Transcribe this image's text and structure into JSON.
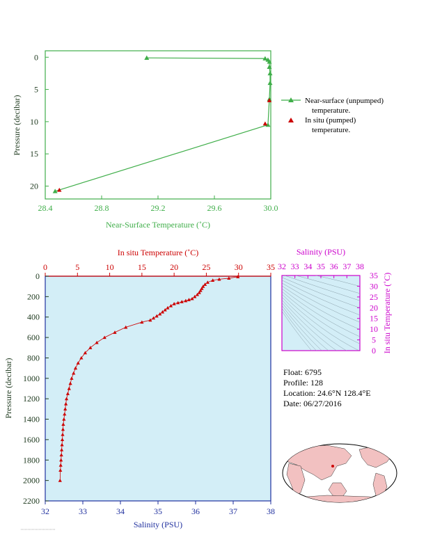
{
  "chart_data": [
    {
      "type": "line",
      "xlabel": "Near-Surface Temperature (˚C)",
      "ylabel": "Pressure (decibar)",
      "xlim": [
        28.4,
        30.0
      ],
      "ylim": [
        22,
        -1
      ],
      "xticks": [
        "28.4",
        "28.8",
        "29.2",
        "29.6",
        "30.0"
      ],
      "yticks": [
        "0",
        "5",
        "10",
        "15",
        "20"
      ],
      "series": [
        {
          "name": "Near-surface (unpumped) temperature.",
          "color": "#3fae49",
          "marker": "triangle",
          "x": [
            29.12,
            29.96,
            29.98,
            29.99,
            29.99,
            29.995,
            29.995,
            29.99,
            29.98,
            28.47
          ],
          "y": [
            0.1,
            0.2,
            0.4,
            0.7,
            1.5,
            2.5,
            4.0,
            6.5,
            10.5,
            20.8
          ]
        },
        {
          "name": "In situ (pumped) temperature.",
          "color": "#cc0000",
          "marker": "triangle",
          "x": [
            29.99,
            29.96,
            28.5
          ],
          "y": [
            6.7,
            10.3,
            20.6
          ]
        }
      ],
      "legend": "right"
    },
    {
      "type": "line",
      "top_axis_label": "In situ Temperature (˚C)",
      "xlabel": "Salinity (PSU)",
      "ylabel": "Pressure (decibar)",
      "temp_lim": [
        0,
        35
      ],
      "sal_lim": [
        32,
        38
      ],
      "ylim": [
        2200,
        0
      ],
      "temp_ticks": [
        "0",
        "5",
        "10",
        "15",
        "20",
        "25",
        "30",
        "35"
      ],
      "sal_ticks": [
        "32",
        "33",
        "34",
        "35",
        "36",
        "37",
        "38"
      ],
      "yticks": [
        "0",
        "200",
        "400",
        "600",
        "800",
        "1000",
        "1200",
        "1400",
        "1600",
        "1800",
        "2000",
        "2200"
      ],
      "series": [
        {
          "name": "In situ temperature profile",
          "color": "#cc0000",
          "marker": "triangle",
          "temp": [
            29.9,
            28.5,
            27.0,
            26.0,
            25.2,
            24.8,
            24.5,
            24.3,
            24.1,
            23.9,
            23.6,
            23.2,
            22.8,
            22.3,
            21.8,
            21.2,
            20.6,
            20.0,
            19.5,
            19.0,
            18.6,
            18.2,
            17.8,
            17.3,
            16.8,
            16.3,
            15.0,
            12.5,
            10.8,
            9.2,
            8.0,
            7.0,
            6.2,
            5.6,
            5.1,
            4.7,
            4.4,
            4.1,
            3.9,
            3.7,
            3.5,
            3.3,
            3.2,
            3.1,
            3.0,
            2.9,
            2.8,
            2.75,
            2.7,
            2.65,
            2.6,
            2.55,
            2.5,
            2.45,
            2.4,
            2.35,
            2.3
          ],
          "pressure": [
            5,
            20,
            30,
            40,
            60,
            80,
            100,
            120,
            140,
            160,
            180,
            200,
            220,
            230,
            240,
            250,
            260,
            270,
            290,
            310,
            330,
            350,
            370,
            390,
            410,
            430,
            450,
            500,
            550,
            600,
            650,
            700,
            750,
            800,
            850,
            900,
            950,
            1000,
            1050,
            1100,
            1150,
            1200,
            1250,
            1300,
            1350,
            1400,
            1450,
            1500,
            1550,
            1600,
            1650,
            1700,
            1750,
            1800,
            1850,
            1900,
            2000
          ]
        }
      ]
    },
    {
      "type": "scatter",
      "xlabel": "Salinity (PSU)",
      "ylabel": "In situ Temperature (˚C)",
      "xlim": [
        32,
        38
      ],
      "ylim": [
        0,
        35
      ],
      "xticks": [
        "32",
        "33",
        "34",
        "35",
        "36",
        "37",
        "38"
      ],
      "yticks": [
        "0",
        "5",
        "10",
        "15",
        "20",
        "25",
        "30",
        "35"
      ]
    }
  ],
  "float_info": {
    "float": "Float:  6795",
    "profile": "Profile:  128",
    "location": "Location:  24.6°N  128.4°E",
    "date": "Date:  06/27/2016"
  },
  "colors": {
    "green": "#3fae49",
    "red": "#cc0000",
    "blue": "#1f2f9e",
    "magenta": "#cc00cc",
    "panel_bg": "#d3eef7",
    "land": "#f2c1c1",
    "ocean": "#ffffff"
  },
  "icons": {
    "world_map": "world-map-icon"
  }
}
